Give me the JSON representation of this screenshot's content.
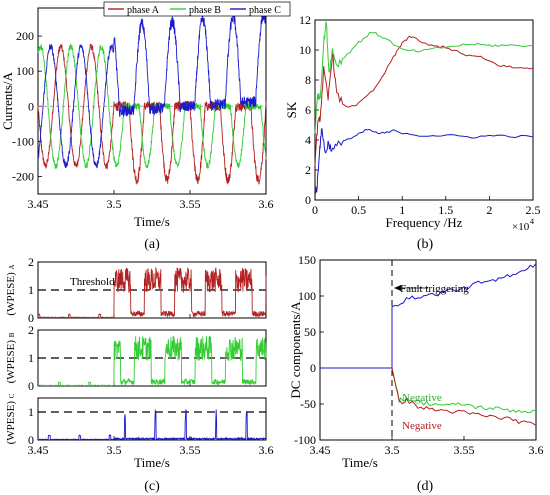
{
  "panel_labels": [
    "(a)",
    "(b)",
    "(c)",
    "(d)"
  ],
  "chart_data": [
    {
      "id": "a",
      "type": "line",
      "xlabel": "Time/s",
      "ylabel": "Currents/A",
      "xlim": [
        3.45,
        3.6
      ],
      "ylim": [
        -250,
        280
      ],
      "xticks": [
        3.45,
        3.5,
        3.55,
        3.6
      ],
      "xtick_labels": [
        "3.45",
        "3.5",
        "3.55",
        "3.6"
      ],
      "yticks": [
        -200,
        -100,
        0,
        100,
        200
      ],
      "ytick_labels": [
        "-200",
        "-100",
        "0",
        "100",
        "200"
      ],
      "legend": "top",
      "fault_time": 3.5,
      "series": [
        {
          "name": "phase A",
          "color": "#b22222",
          "pre_amplitude": 170,
          "frequency_hz": 50,
          "phase_deg": 0,
          "post_fault": "positive pulses clamped near 0 (-250 to 20)"
        },
        {
          "name": "phase B",
          "color": "#33cc33",
          "pre_amplitude": 170,
          "frequency_hz": 50,
          "phase_deg": -120,
          "post_fault": "negative pulses (-180 to 10)"
        },
        {
          "name": "phase C",
          "color": "#1a1acc",
          "pre_amplitude": 170,
          "frequency_hz": 50,
          "phase_deg": 120,
          "post_fault": "large pulses (-30 to 290)"
        }
      ]
    },
    {
      "id": "b",
      "type": "line",
      "xlabel": "Frequency /Hz",
      "ylabel": "SK",
      "x_multiplier": "×10",
      "x_multiplier_exp": "4",
      "xlim": [
        0,
        2.5
      ],
      "ylim": [
        0,
        12
      ],
      "xticks": [
        0,
        0.5,
        1,
        1.5,
        2,
        2.5
      ],
      "xtick_labels": [
        "0",
        "0.5",
        "1",
        "1.5",
        "2",
        "2.5"
      ],
      "yticks": [
        0,
        2,
        4,
        6,
        8,
        10,
        12
      ],
      "ytick_labels": [
        "0",
        "2",
        "4",
        "6",
        "8",
        "10",
        "12"
      ],
      "series": [
        {
          "color": "#b22222",
          "x": [
            0,
            0.03,
            0.06,
            0.1,
            0.15,
            0.2,
            0.25,
            0.35,
            0.5,
            0.7,
            0.9,
            1.0,
            1.1,
            1.3,
            1.5,
            1.7,
            1.9,
            2.1,
            2.3,
            2.5
          ],
          "y": [
            2.5,
            5.0,
            5.5,
            8.7,
            6.7,
            9.8,
            7.0,
            6.2,
            6.4,
            7.5,
            9.5,
            10.5,
            10.9,
            10.3,
            10.2,
            9.7,
            9.5,
            9.0,
            8.8,
            8.8
          ]
        },
        {
          "color": "#33cc33",
          "x": [
            0,
            0.03,
            0.06,
            0.1,
            0.13,
            0.16,
            0.2,
            0.25,
            0.35,
            0.5,
            0.65,
            0.8,
            1.0,
            1.2,
            1.5,
            1.8,
            2.0,
            2.2,
            2.5
          ],
          "y": [
            4.5,
            7.0,
            6.8,
            10.5,
            11.9,
            8.5,
            10.0,
            9.0,
            9.6,
            10.5,
            11.2,
            10.8,
            10.0,
            9.9,
            10.2,
            10.4,
            10.3,
            10.3,
            10.3
          ]
        },
        {
          "color": "#1a1acc",
          "x": [
            0,
            0.02,
            0.05,
            0.08,
            0.12,
            0.15,
            0.2,
            0.3,
            0.45,
            0.6,
            0.75,
            0.9,
            1.2,
            1.5,
            1.8,
            2.1,
            2.5
          ],
          "y": [
            0.7,
            0.6,
            3.2,
            4.8,
            3.0,
            3.8,
            3.3,
            3.9,
            4.2,
            4.7,
            4.4,
            4.6,
            4.3,
            4.3,
            4.2,
            4.3,
            4.2
          ]
        }
      ]
    },
    {
      "id": "c",
      "type": "line",
      "xlabel": "Time/s",
      "xlim": [
        3.45,
        3.6
      ],
      "xticks": [
        3.45,
        3.5,
        3.55,
        3.6
      ],
      "xtick_labels": [
        "3.45",
        "3.5",
        "3.55",
        "3.6"
      ],
      "threshold_label": "Threshold",
      "threshold": 1,
      "subplots": [
        {
          "ylabel_main": "(WPESE)",
          "ylabel_sub": "A",
          "color": "#b22222",
          "ylim": [
            0,
            2
          ],
          "yticks": [
            0,
            1,
            2
          ],
          "ytick_labels": [
            "0",
            "1",
            "2"
          ],
          "pre_fault_level": 0.1,
          "post_fault_level": "0.3 to 1.8"
        },
        {
          "ylabel_main": "(WPESE)",
          "ylabel_sub": "B",
          "color": "#33cc33",
          "ylim": [
            0,
            2
          ],
          "yticks": [
            0,
            1,
            2
          ],
          "ytick_labels": [
            "0",
            "1",
            "2"
          ],
          "pre_fault_level": 0.15,
          "post_fault_level": "0.3 to 1.9"
        },
        {
          "ylabel_main": "(WPESE)",
          "ylabel_sub": "C",
          "color": "#1a1acc",
          "ylim": [
            0,
            1.5
          ],
          "yticks": [
            0,
            1
          ],
          "ytick_labels": [
            "0",
            "1"
          ],
          "pre_fault_level": 0.15,
          "post_fault_level": "spikes up to 1.1"
        }
      ]
    },
    {
      "id": "d",
      "type": "line",
      "xlabel": "Time/s",
      "ylabel": "DC components/A",
      "xlim": [
        3.45,
        3.6
      ],
      "ylim": [
        -100,
        150
      ],
      "xticks": [
        3.45,
        3.5,
        3.55,
        3.6
      ],
      "xtick_labels": [
        "3.45",
        "3.5",
        "3.55",
        "3.6"
      ],
      "yticks": [
        -100,
        -50,
        0,
        50,
        100,
        150
      ],
      "ytick_labels": [
        "-100",
        "-50",
        "0",
        "50",
        "100",
        "150"
      ],
      "fault_time": 3.5,
      "annotations": {
        "fault": "Fault triggering",
        "neg_green": "Negative",
        "neg_red": "Negative"
      },
      "series": [
        {
          "color": "#1a1acc",
          "x": [
            3.45,
            3.5,
            3.5,
            3.51,
            3.52,
            3.53,
            3.54,
            3.55,
            3.56,
            3.57,
            3.58,
            3.59,
            3.6
          ],
          "y": [
            0,
            0,
            85,
            95,
            100,
            102,
            108,
            110,
            118,
            120,
            128,
            135,
            145
          ]
        },
        {
          "color": "#33cc33",
          "x": [
            3.5,
            3.505,
            3.51,
            3.52,
            3.53,
            3.54,
            3.55,
            3.56,
            3.57,
            3.58,
            3.59,
            3.6
          ],
          "y": [
            0,
            -45,
            -42,
            -48,
            -50,
            -52,
            -50,
            -55,
            -56,
            -58,
            -60,
            -60
          ]
        },
        {
          "color": "#b22222",
          "x": [
            3.5,
            3.505,
            3.51,
            3.52,
            3.53,
            3.54,
            3.55,
            3.56,
            3.57,
            3.58,
            3.59,
            3.6
          ],
          "y": [
            0,
            -48,
            -45,
            -55,
            -58,
            -60,
            -62,
            -65,
            -68,
            -70,
            -75,
            -80
          ]
        }
      ]
    }
  ]
}
